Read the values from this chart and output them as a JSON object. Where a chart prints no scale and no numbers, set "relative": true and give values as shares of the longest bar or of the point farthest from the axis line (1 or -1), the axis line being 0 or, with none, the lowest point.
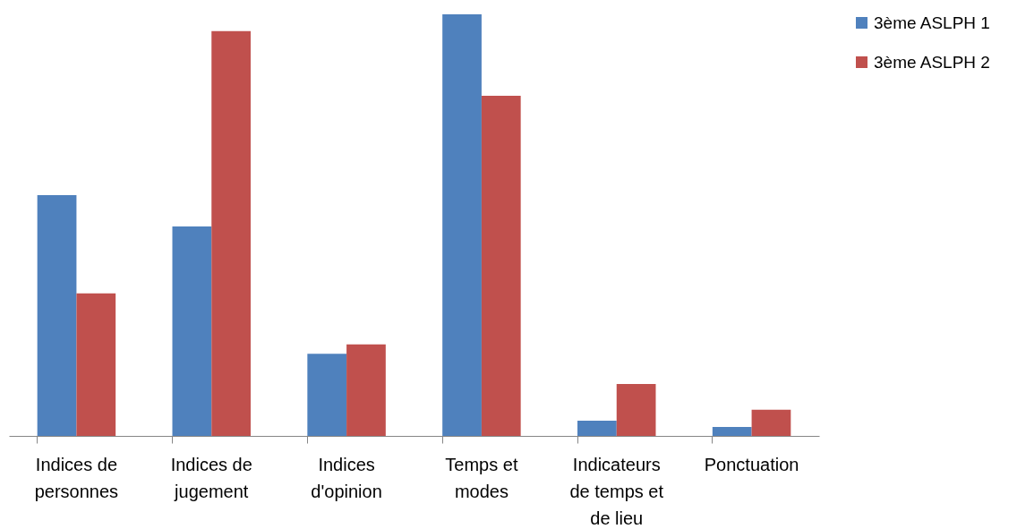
{
  "chart_data": {
    "type": "bar",
    "relative": true,
    "categories": [
      "Indices de personnes",
      "Indices de jugement",
      "Indices d'opinion",
      "Temps et modes",
      "Indicateurs de temps et de lieu",
      "Ponctuation"
    ],
    "series": [
      {
        "name": "3ème ASLPH 1",
        "color": "#4f81bd",
        "values": [
          0.571,
          0.497,
          0.195,
          1,
          0.036,
          0.021
        ]
      },
      {
        "name": "3ème ASLPH 2",
        "color": "#c0504d",
        "values": [
          0.338,
          0.96,
          0.217,
          0.807,
          0.123,
          0.062
        ]
      }
    ],
    "legend": "right",
    "grid": false
  }
}
